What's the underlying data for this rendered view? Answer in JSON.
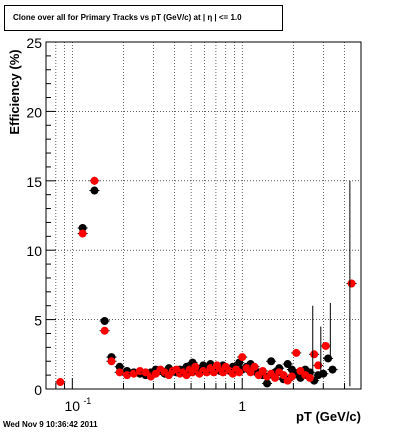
{
  "header": {
    "title": "Clone  over all for Primary Tracks vs pT (GeV/c) at |  η | <= 1.0"
  },
  "footer": {
    "timestamp": "Wed Nov  9 10:36:42 2011"
  },
  "chart_data": {
    "type": "scatter",
    "title": "Clone  over all for Primary Tracks vs pT (GeV/c) at |  η | <= 1.0",
    "xlabel": "pT (GeV/c)",
    "ylabel": "Efficiency (%)",
    "xscale": "log",
    "xlim": [
      0.07,
      5.0
    ],
    "ylim": [
      0,
      25
    ],
    "grid": true,
    "y_ticks": [
      "0",
      "5",
      "10",
      "15",
      "20",
      "25"
    ],
    "x_ticks": [
      {
        "value": 0.1,
        "label": "10",
        "exp": "-1"
      },
      {
        "value": 1,
        "label": "1",
        "exp": ""
      }
    ],
    "series": [
      {
        "color": "#000000",
        "points": [
          [
            0.115,
            11.6
          ],
          [
            0.135,
            14.3
          ],
          [
            0.155,
            4.9
          ],
          [
            0.17,
            2.3
          ],
          [
            0.19,
            1.6
          ],
          [
            0.21,
            1.3
          ],
          [
            0.23,
            1.2
          ],
          [
            0.25,
            1.1
          ],
          [
            0.27,
            1.0
          ],
          [
            0.29,
            1.2
          ],
          [
            0.31,
            1.4
          ],
          [
            0.33,
            1.3
          ],
          [
            0.35,
            1.1
          ],
          [
            0.37,
            1.5
          ],
          [
            0.39,
            1.3
          ],
          [
            0.41,
            1.2
          ],
          [
            0.43,
            1.4
          ],
          [
            0.45,
            1.3
          ],
          [
            0.47,
            1.6
          ],
          [
            0.49,
            1.2
          ],
          [
            0.51,
            1.9
          ],
          [
            0.53,
            1.4
          ],
          [
            0.56,
            1.3
          ],
          [
            0.59,
            1.7
          ],
          [
            0.62,
            1.5
          ],
          [
            0.65,
            1.8
          ],
          [
            0.68,
            1.4
          ],
          [
            0.71,
            1.6
          ],
          [
            0.74,
            1.3
          ],
          [
            0.77,
            1.7
          ],
          [
            0.8,
            1.5
          ],
          [
            0.84,
            1.4
          ],
          [
            0.88,
            1.6
          ],
          [
            0.92,
            1.3
          ],
          [
            0.96,
            1.9
          ],
          [
            1.0,
            1.4
          ],
          [
            1.06,
            1.6
          ],
          [
            1.12,
            1.8
          ],
          [
            1.18,
            1.3
          ],
          [
            1.25,
            1.2
          ],
          [
            1.32,
            1.0
          ],
          [
            1.4,
            0.4
          ],
          [
            1.48,
            2.0
          ],
          [
            1.56,
            1.2
          ],
          [
            1.65,
            1.5
          ],
          [
            1.75,
            0.7
          ],
          [
            1.85,
            1.8
          ],
          [
            1.96,
            1.4
          ],
          [
            2.08,
            1.1
          ],
          [
            2.2,
            0.8
          ],
          [
            2.35,
            1.4
          ],
          [
            2.5,
            1.2
          ],
          [
            2.65,
            0.6
          ],
          [
            2.8,
            1.0
          ],
          [
            3.0,
            1.1
          ],
          [
            3.2,
            2.2
          ],
          [
            3.4,
            1.4
          ]
        ]
      },
      {
        "color": "#ff0000",
        "points": [
          [
            0.085,
            0.5
          ],
          [
            0.115,
            11.2
          ],
          [
            0.135,
            15.0
          ],
          [
            0.155,
            4.2
          ],
          [
            0.17,
            2.0
          ],
          [
            0.19,
            1.2
          ],
          [
            0.21,
            1.0
          ],
          [
            0.23,
            1.1
          ],
          [
            0.25,
            1.3
          ],
          [
            0.27,
            1.2
          ],
          [
            0.29,
            0.9
          ],
          [
            0.31,
            1.1
          ],
          [
            0.33,
            1.4
          ],
          [
            0.35,
            1.2
          ],
          [
            0.37,
            1.0
          ],
          [
            0.39,
            1.3
          ],
          [
            0.41,
            1.4
          ],
          [
            0.43,
            1.1
          ],
          [
            0.45,
            1.2
          ],
          [
            0.47,
            1.0
          ],
          [
            0.49,
            1.4
          ],
          [
            0.51,
            1.2
          ],
          [
            0.53,
            1.6
          ],
          [
            0.56,
            1.1
          ],
          [
            0.59,
            1.3
          ],
          [
            0.62,
            1.2
          ],
          [
            0.65,
            1.5
          ],
          [
            0.68,
            1.2
          ],
          [
            0.71,
            1.7
          ],
          [
            0.74,
            1.4
          ],
          [
            0.77,
            1.2
          ],
          [
            0.8,
            1.6
          ],
          [
            0.84,
            1.3
          ],
          [
            0.88,
            1.1
          ],
          [
            0.92,
            1.4
          ],
          [
            0.96,
            1.2
          ],
          [
            1.0,
            2.3
          ],
          [
            1.06,
            1.5
          ],
          [
            1.12,
            1.2
          ],
          [
            1.18,
            1.6
          ],
          [
            1.25,
            1.0
          ],
          [
            1.32,
            1.3
          ],
          [
            1.4,
            0.9
          ],
          [
            1.48,
            1.1
          ],
          [
            1.56,
            0.8
          ],
          [
            1.65,
            1.2
          ],
          [
            1.75,
            1.0
          ],
          [
            1.85,
            0.6
          ],
          [
            1.96,
            0.9
          ],
          [
            2.08,
            2.6
          ],
          [
            2.2,
            1.3
          ],
          [
            2.35,
            1.0
          ],
          [
            2.5,
            0.8
          ],
          [
            2.65,
            2.5
          ],
          [
            2.8,
            1.7
          ],
          [
            3.1,
            3.1
          ],
          [
            4.4,
            7.6
          ]
        ]
      }
    ]
  }
}
